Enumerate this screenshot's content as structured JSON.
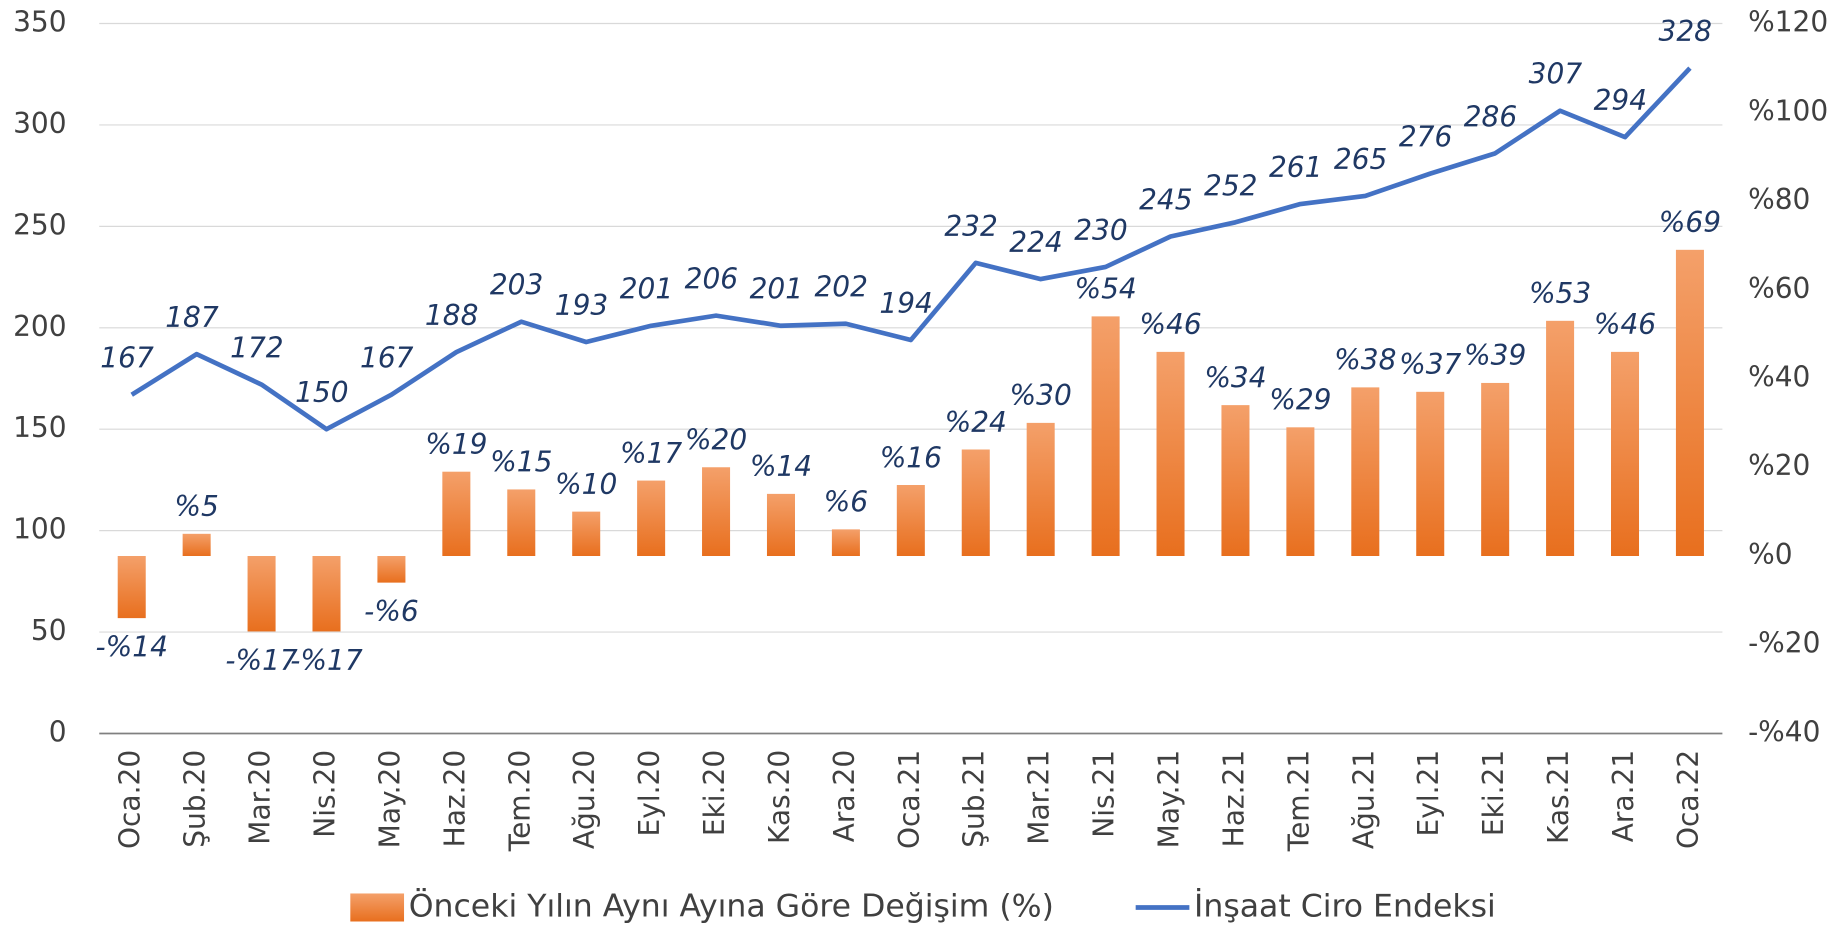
{
  "chart_data": {
    "type": "bar_line",
    "categories": [
      "Oca.20",
      "Şub.20",
      "Mar.20",
      "Nis.20",
      "May.20",
      "Haz.20",
      "Tem.20",
      "Ağu.20",
      "Eyl.20",
      "Eki.20",
      "Kas.20",
      "Ara.20",
      "Oca.21",
      "Şub.21",
      "Mar.21",
      "Nis.21",
      "May.21",
      "Haz.21",
      "Tem.21",
      "Ağu.21",
      "Eyl.21",
      "Eki.21",
      "Kas.21",
      "Ara.21",
      "Oca.22"
    ],
    "series": [
      {
        "name": "Önceki Yılın Aynı Ayına Göre Değişim (%)",
        "type": "bar",
        "axis": "y2",
        "color": "#ed7d31",
        "values": [
          -14,
          5,
          -17,
          -17,
          -6,
          19,
          15,
          10,
          17,
          20,
          14,
          6,
          16,
          24,
          30,
          54,
          46,
          34,
          29,
          38,
          37,
          39,
          53,
          46,
          69
        ],
        "value_labels": [
          "-%14",
          "%5",
          "-%17",
          "-%17",
          "-%6",
          "%19",
          "%15",
          "%10",
          "%17",
          "%20",
          "%14",
          "%6",
          "%16",
          "%24",
          "%30",
          "%54",
          "%46",
          "%34",
          "%29",
          "%38",
          "%37",
          "%39",
          "%53",
          "%46",
          "%69"
        ]
      },
      {
        "name": "İnşaat Ciro Endeksi",
        "type": "line",
        "axis": "y",
        "color": "#4472c4",
        "values": [
          167,
          187,
          172,
          150,
          167,
          188,
          203,
          193,
          201,
          206,
          201,
          202,
          194,
          232,
          224,
          230,
          245,
          252,
          261,
          265,
          276,
          286,
          307,
          294,
          328
        ]
      }
    ],
    "ylim": [
      0,
      350
    ],
    "yticks": [
      0,
      50,
      100,
      150,
      200,
      250,
      300,
      350
    ],
    "y2lim": [
      -40,
      120
    ],
    "y2ticks": [
      {
        "value": -40,
        "label": "-%40"
      },
      {
        "value": -20,
        "label": "-%20"
      },
      {
        "value": 0,
        "label": "%0"
      },
      {
        "value": 20,
        "label": "%20"
      },
      {
        "value": 40,
        "label": "%40"
      },
      {
        "value": 60,
        "label": "%60"
      },
      {
        "value": 80,
        "label": "%80"
      },
      {
        "value": 100,
        "label": "%100"
      },
      {
        "value": 120,
        "label": "%120"
      }
    ],
    "grid": true,
    "legend": "bottom"
  }
}
